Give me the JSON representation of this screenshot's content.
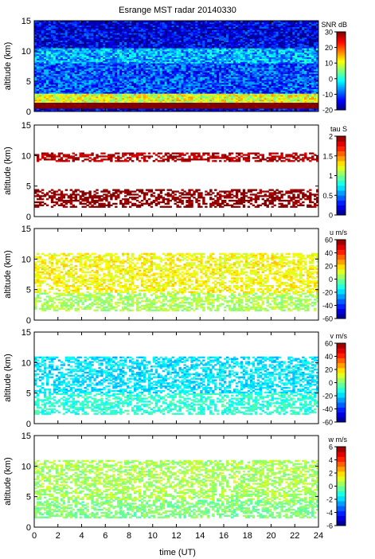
{
  "title": "Esrange MST radar 20140330",
  "chart_data": {
    "type": "heatmap",
    "title": "Esrange MST radar 20140330",
    "xlabel": "time (UT)",
    "xlim": [
      0,
      24
    ],
    "xticks": [
      0,
      2,
      4,
      6,
      8,
      10,
      12,
      14,
      16,
      18,
      20,
      22,
      24
    ],
    "panels": [
      {
        "id": "snr",
        "ylabel": "altitude (km)",
        "ylim": [
          0,
          15
        ],
        "yticks": [
          0,
          5,
          10,
          15
        ],
        "colorbar_label": "SNR dB",
        "colorbar_range": [
          -20,
          30
        ],
        "colorbar_ticks": [
          -20,
          -10,
          0,
          10,
          20,
          30
        ],
        "colorscale": "jet",
        "features": [
          {
            "altitude_km": [
              0.5,
              1.5
            ],
            "level": 35,
            "note": "lowest band"
          },
          {
            "altitude_km": [
              1.5,
              3.0
            ],
            "level": 10,
            "note": "strong low layer"
          },
          {
            "altitude_km": [
              3.0,
              8.0
            ],
            "level": -10
          },
          {
            "altitude_km": [
              8.0,
              10.5
            ],
            "level": -5
          },
          {
            "altitude_km": [
              10.5,
              15.0
            ],
            "level": -15
          }
        ]
      },
      {
        "id": "tau",
        "ylabel": "altitude (km)",
        "ylim": [
          0,
          15
        ],
        "yticks": [
          0,
          5,
          10,
          15
        ],
        "colorbar_label": "tau S",
        "colorbar_range": [
          0,
          2
        ],
        "colorbar_ticks": [
          0,
          0.5,
          1,
          1.5,
          2
        ],
        "colorscale": "jet",
        "features": [
          {
            "altitude_km": [
              1.5,
              4.5
            ],
            "level": 2.0
          },
          {
            "altitude_km": [
              9.0,
              10.5
            ],
            "level": 1.9
          }
        ]
      },
      {
        "id": "u",
        "ylabel": "altitude (km)",
        "ylim": [
          0,
          15
        ],
        "yticks": [
          0,
          5,
          10,
          15
        ],
        "colorbar_label": "u m/s",
        "colorbar_range": [
          -60,
          60
        ],
        "colorbar_ticks": [
          -60,
          -40,
          -20,
          0,
          20,
          40,
          60
        ],
        "colorscale": "jet",
        "features": [
          {
            "altitude_km": [
              1.5,
              4.5
            ],
            "level": 5
          },
          {
            "altitude_km": [
              4.5,
              11.0
            ],
            "level": 15
          }
        ]
      },
      {
        "id": "v",
        "ylabel": "altitude (km)",
        "ylim": [
          0,
          15
        ],
        "yticks": [
          0,
          5,
          10,
          15
        ],
        "colorbar_label": "v m/s",
        "colorbar_range": [
          -60,
          60
        ],
        "colorbar_ticks": [
          -60,
          -40,
          -20,
          0,
          20,
          40,
          60
        ],
        "colorscale": "jet",
        "features": [
          {
            "altitude_km": [
              1.5,
              5.0
            ],
            "level": -10
          },
          {
            "altitude_km": [
              5.0,
              11.0
            ],
            "level": -18
          }
        ]
      },
      {
        "id": "w",
        "ylabel": "altitude (km)",
        "ylim": [
          0,
          15
        ],
        "yticks": [
          0,
          5,
          10,
          15
        ],
        "colorbar_label": "w m/s",
        "colorbar_range": [
          -6,
          6
        ],
        "colorbar_ticks": [
          -6,
          -4,
          -2,
          0,
          2,
          4,
          6
        ],
        "colorscale": "jet",
        "features": [
          {
            "altitude_km": [
              1.5,
              4.5
            ],
            "level": 0
          },
          {
            "altitude_km": [
              4.5,
              11.0
            ],
            "level": 0.5
          }
        ]
      }
    ]
  }
}
